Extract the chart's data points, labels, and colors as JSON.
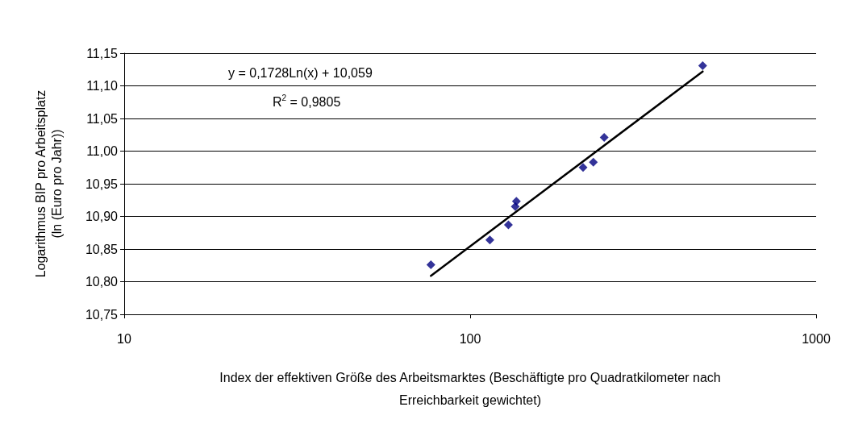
{
  "chart_data": {
    "type": "scatter",
    "xlabel": "Index der effektiven Größe des Arbeitsmarktes (Beschäftigte pro Quadratkilometer nach Erreichbarkeit gewichtet)",
    "ylabel": "Logarithmus BIP pro Arbeitsplatz\n(ln (Euro pro Jahr))",
    "annotations": [
      "y = 0,1728Ln(x) + 10,059",
      "R$^{2}$ = 0,9805"
    ],
    "log": "x",
    "grid": "y",
    "xlim": [
      10,
      1000
    ],
    "xticks": [
      10,
      100,
      1000
    ],
    "ylim": [
      10.75,
      11.15
    ],
    "yticks": [
      {
        "value": 10.75,
        "label": "10,75"
      },
      {
        "value": 10.8,
        "label": "10,80"
      },
      {
        "value": 10.85,
        "label": "10,85"
      },
      {
        "value": 10.9,
        "label": "10,90"
      },
      {
        "value": 10.95,
        "label": "10,95"
      },
      {
        "value": 11.0,
        "label": "11,00"
      },
      {
        "value": 11.05,
        "label": "11,05"
      },
      {
        "value": 11.1,
        "label": "11,10"
      },
      {
        "value": 11.15,
        "label": "11,15"
      }
    ],
    "series": [
      {
        "marker": "diamond",
        "color": "#000080",
        "x": [
          77,
          114,
          129,
          135,
          136,
          212,
          227,
          244,
          470
        ],
        "values": [
          10.826,
          10.864,
          10.887,
          10.915,
          10.923,
          10.975,
          10.983,
          11.021,
          11.131
        ]
      },
      {
        "type": "line",
        "marker": "none",
        "line_style": "solid",
        "color": "#000000",
        "x": [
          77,
          470
        ],
        "values": [
          10.809,
          11.122
        ]
      }
    ]
  }
}
